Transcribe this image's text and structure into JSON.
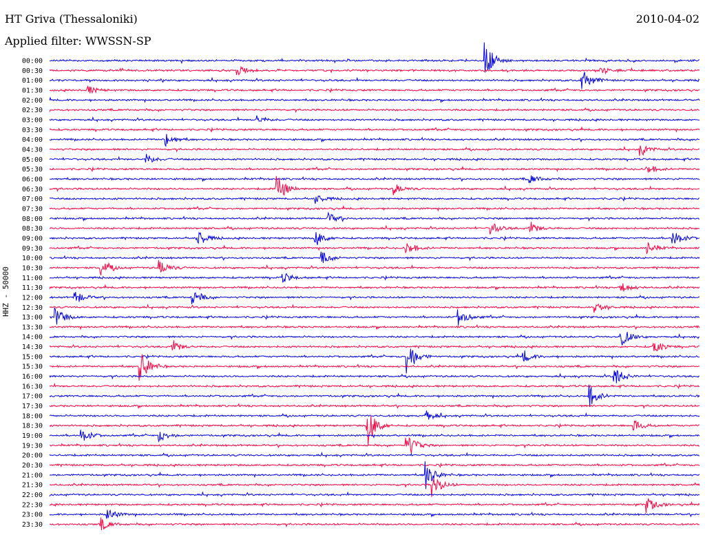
{
  "header": {
    "station": "HT Griva (Thessaloniki)",
    "date": "2010-04-02",
    "filter": "Applied filter: WWSSN-SP"
  },
  "chart_data": {
    "type": "line",
    "title": "HT Griva (Thessaloniki)",
    "ylabel": "HHZ - 50000",
    "colors": {
      "even": "#0000e0",
      "odd": "#ff0040"
    },
    "rows": [
      {
        "label": "00:00",
        "events": [
          [
            0.67,
            1.0
          ]
        ]
      },
      {
        "label": "00:30",
        "events": [
          [
            0.29,
            0.25
          ],
          [
            0.85,
            0.2
          ]
        ]
      },
      {
        "label": "01:00",
        "events": [
          [
            0.82,
            0.6
          ]
        ]
      },
      {
        "label": "01:30",
        "events": [
          [
            0.06,
            0.2
          ]
        ]
      },
      {
        "label": "02:00",
        "events": []
      },
      {
        "label": "02:30",
        "events": []
      },
      {
        "label": "03:00",
        "events": [
          [
            0.32,
            0.2
          ]
        ]
      },
      {
        "label": "03:30",
        "events": []
      },
      {
        "label": "04:00",
        "events": [
          [
            0.18,
            0.35
          ]
        ]
      },
      {
        "label": "04:30",
        "events": [
          [
            0.91,
            0.3
          ]
        ]
      },
      {
        "label": "05:00",
        "events": [
          [
            0.15,
            0.25
          ]
        ]
      },
      {
        "label": "05:30",
        "events": [
          [
            0.92,
            0.25
          ]
        ]
      },
      {
        "label": "06:00",
        "events": [
          [
            0.74,
            0.25
          ]
        ]
      },
      {
        "label": "06:30",
        "events": [
          [
            0.35,
            0.8
          ],
          [
            0.53,
            0.3
          ]
        ]
      },
      {
        "label": "07:00",
        "events": [
          [
            0.41,
            0.25
          ]
        ]
      },
      {
        "label": "07:30",
        "events": []
      },
      {
        "label": "08:00",
        "events": [
          [
            0.43,
            0.25
          ]
        ]
      },
      {
        "label": "08:30",
        "events": [
          [
            0.68,
            0.3
          ],
          [
            0.74,
            0.3
          ]
        ]
      },
      {
        "label": "09:00",
        "events": [
          [
            0.23,
            0.4
          ],
          [
            0.41,
            0.4
          ],
          [
            0.96,
            0.45
          ]
        ]
      },
      {
        "label": "09:30",
        "events": [
          [
            0.55,
            0.35
          ],
          [
            0.92,
            0.3
          ]
        ]
      },
      {
        "label": "10:00",
        "events": [
          [
            0.42,
            0.3
          ]
        ]
      },
      {
        "label": "10:30",
        "events": [
          [
            0.08,
            0.4
          ],
          [
            0.17,
            0.4
          ]
        ]
      },
      {
        "label": "11:00",
        "events": [
          [
            0.36,
            0.25
          ]
        ]
      },
      {
        "label": "11:30",
        "events": [
          [
            0.88,
            0.3
          ]
        ]
      },
      {
        "label": "12:00",
        "events": [
          [
            0.04,
            0.35
          ],
          [
            0.22,
            0.4
          ]
        ]
      },
      {
        "label": "12:30",
        "events": [
          [
            0.84,
            0.3
          ]
        ]
      },
      {
        "label": "13:00",
        "events": [
          [
            0.01,
            0.5
          ],
          [
            0.63,
            0.5
          ]
        ]
      },
      {
        "label": "13:30",
        "events": []
      },
      {
        "label": "14:00",
        "events": [
          [
            0.88,
            0.5
          ]
        ]
      },
      {
        "label": "14:30",
        "events": [
          [
            0.19,
            0.3
          ],
          [
            0.93,
            0.35
          ]
        ]
      },
      {
        "label": "15:00",
        "events": [
          [
            0.55,
            1.0
          ],
          [
            0.73,
            0.3
          ]
        ]
      },
      {
        "label": "15:30",
        "events": [
          [
            0.14,
            0.9
          ]
        ]
      },
      {
        "label": "16:00",
        "events": [
          [
            0.87,
            0.55
          ]
        ]
      },
      {
        "label": "16:30",
        "events": []
      },
      {
        "label": "17:00",
        "events": [
          [
            0.83,
            0.6
          ]
        ]
      },
      {
        "label": "17:30",
        "events": []
      },
      {
        "label": "18:00",
        "events": [
          [
            0.58,
            0.25
          ]
        ]
      },
      {
        "label": "18:30",
        "events": [
          [
            0.49,
            1.0
          ],
          [
            0.9,
            0.3
          ]
        ]
      },
      {
        "label": "19:00",
        "events": [
          [
            0.05,
            0.35
          ],
          [
            0.17,
            0.3
          ]
        ]
      },
      {
        "label": "19:30",
        "events": [
          [
            0.55,
            0.7
          ]
        ]
      },
      {
        "label": "20:00",
        "events": []
      },
      {
        "label": "20:30",
        "events": []
      },
      {
        "label": "21:00",
        "events": [
          [
            0.58,
            0.7
          ]
        ]
      },
      {
        "label": "21:30",
        "events": [
          [
            0.59,
            0.6
          ]
        ]
      },
      {
        "label": "22:00",
        "events": []
      },
      {
        "label": "22:30",
        "events": [
          [
            0.92,
            0.4
          ]
        ]
      },
      {
        "label": "23:00",
        "events": [
          [
            0.09,
            0.3
          ]
        ]
      },
      {
        "label": "23:30",
        "events": [
          [
            0.08,
            0.3
          ]
        ]
      }
    ]
  }
}
